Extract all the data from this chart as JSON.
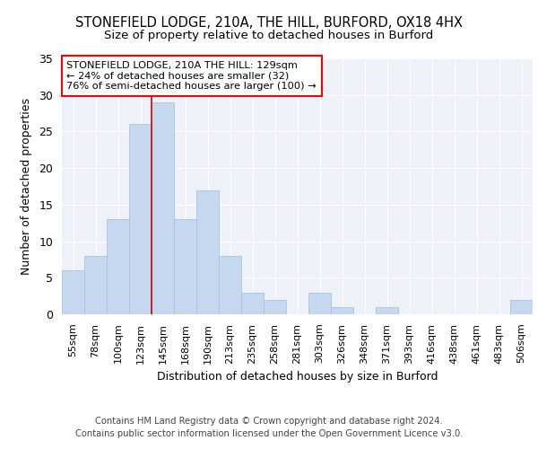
{
  "title1": "STONEFIELD LODGE, 210A, THE HILL, BURFORD, OX18 4HX",
  "title2": "Size of property relative to detached houses in Burford",
  "xlabel": "Distribution of detached houses by size in Burford",
  "ylabel": "Number of detached properties",
  "categories": [
    "55sqm",
    "78sqm",
    "100sqm",
    "123sqm",
    "145sqm",
    "168sqm",
    "190sqm",
    "213sqm",
    "235sqm",
    "258sqm",
    "281sqm",
    "303sqm",
    "326sqm",
    "348sqm",
    "371sqm",
    "393sqm",
    "416sqm",
    "438sqm",
    "461sqm",
    "483sqm",
    "506sqm"
  ],
  "values": [
    6,
    8,
    13,
    26,
    29,
    13,
    17,
    8,
    3,
    2,
    0,
    3,
    1,
    0,
    1,
    0,
    0,
    0,
    0,
    0,
    2
  ],
  "bar_color": "#c5d8ef",
  "bar_edge_color": "#a8c4e0",
  "red_line_index": 3.5,
  "annotation_text": "STONEFIELD LODGE, 210A THE HILL: 129sqm\n← 24% of detached houses are smaller (32)\n76% of semi-detached houses are larger (100) →",
  "footer": "Contains HM Land Registry data © Crown copyright and database right 2024.\nContains public sector information licensed under the Open Government Licence v3.0.",
  "ylim": [
    0,
    35
  ],
  "yticks": [
    0,
    5,
    10,
    15,
    20,
    25,
    30,
    35
  ],
  "bg_color": "#eef2f8"
}
